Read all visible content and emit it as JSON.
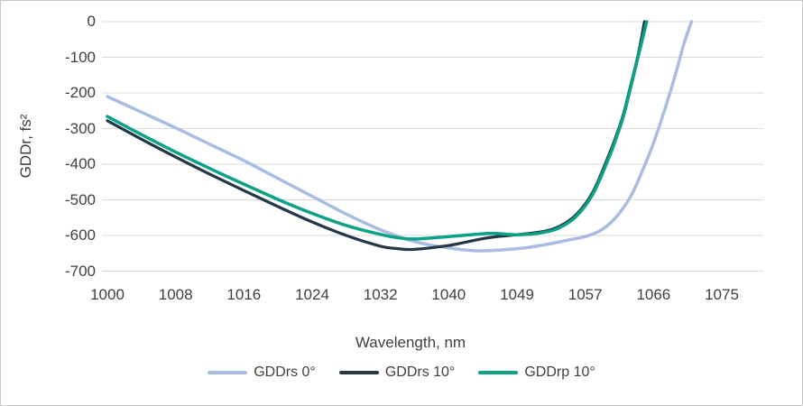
{
  "chart_data": {
    "type": "line",
    "title": "",
    "xlabel": "Wavelength, nm",
    "ylabel": "GDDr, fs²",
    "x_tick_labels": [
      "1000",
      "1008",
      "1016",
      "1024",
      "1032",
      "1040",
      "1049",
      "1057",
      "1066",
      "1075"
    ],
    "x_tick_values": [
      1000,
      1008,
      1016,
      1024,
      1032,
      1040,
      1049,
      1057,
      1066,
      1075
    ],
    "y_tick_labels": [
      "0",
      "-100",
      "-200",
      "-300",
      "-400",
      "-500",
      "-600",
      "-700"
    ],
    "y_tick_values": [
      0,
      -100,
      -200,
      -300,
      -400,
      -500,
      -600,
      -700
    ],
    "ylim": [
      -700,
      0
    ],
    "grid": "horizontal",
    "legend_position": "bottom",
    "series": [
      {
        "name": "GDDrs 0°",
        "color": "#a9bce2",
        "stroke_width": 3.5,
        "points": [
          [
            1000,
            -210
          ],
          [
            1004,
            -254
          ],
          [
            1008,
            -298
          ],
          [
            1012,
            -344
          ],
          [
            1016,
            -390
          ],
          [
            1020,
            -440
          ],
          [
            1024,
            -490
          ],
          [
            1028,
            -540
          ],
          [
            1032,
            -584
          ],
          [
            1036,
            -617
          ],
          [
            1040,
            -635
          ],
          [
            1044,
            -643
          ],
          [
            1049,
            -637
          ],
          [
            1052,
            -627
          ],
          [
            1055,
            -613
          ],
          [
            1057,
            -603
          ],
          [
            1059,
            -586
          ],
          [
            1061,
            -550
          ],
          [
            1063,
            -490
          ],
          [
            1064.5,
            -420
          ],
          [
            1066,
            -340
          ],
          [
            1067.5,
            -245
          ],
          [
            1069,
            -140
          ],
          [
            1070,
            -62
          ],
          [
            1071,
            0
          ]
        ]
      },
      {
        "name": "GDDrs 10°",
        "color": "#243746",
        "stroke_width": 3.2,
        "points": [
          [
            1000,
            -278
          ],
          [
            1004,
            -330
          ],
          [
            1008,
            -380
          ],
          [
            1012,
            -428
          ],
          [
            1016,
            -474
          ],
          [
            1020,
            -519
          ],
          [
            1024,
            -562
          ],
          [
            1028,
            -600
          ],
          [
            1032,
            -630
          ],
          [
            1034,
            -637
          ],
          [
            1036,
            -639
          ],
          [
            1040,
            -628
          ],
          [
            1044,
            -611
          ],
          [
            1046,
            -604
          ],
          [
            1049,
            -598
          ],
          [
            1052,
            -589
          ],
          [
            1054,
            -574
          ],
          [
            1056,
            -540
          ],
          [
            1058,
            -478
          ],
          [
            1060,
            -380
          ],
          [
            1061,
            -325
          ],
          [
            1062,
            -262
          ],
          [
            1063,
            -178
          ],
          [
            1064,
            -90
          ],
          [
            1064.8,
            0
          ]
        ]
      },
      {
        "name": "GDDrp 10°",
        "color": "#0ca287",
        "stroke_width": 3.5,
        "points": [
          [
            1000,
            -266
          ],
          [
            1004,
            -317
          ],
          [
            1008,
            -366
          ],
          [
            1012,
            -412
          ],
          [
            1016,
            -456
          ],
          [
            1020,
            -499
          ],
          [
            1024,
            -538
          ],
          [
            1028,
            -572
          ],
          [
            1032,
            -597
          ],
          [
            1034,
            -606
          ],
          [
            1036,
            -610
          ],
          [
            1040,
            -603
          ],
          [
            1044,
            -596
          ],
          [
            1046,
            -594
          ],
          [
            1049,
            -598
          ],
          [
            1052,
            -592
          ],
          [
            1054,
            -578
          ],
          [
            1056,
            -545
          ],
          [
            1058,
            -484
          ],
          [
            1060,
            -388
          ],
          [
            1061,
            -332
          ],
          [
            1062,
            -268
          ],
          [
            1063,
            -184
          ],
          [
            1064,
            -96
          ],
          [
            1065.1,
            0
          ]
        ]
      }
    ]
  },
  "colors": {
    "background": "#ffffff",
    "border": "#c8c8c8",
    "gridline": "#d9d9d9",
    "label": "#404040"
  }
}
